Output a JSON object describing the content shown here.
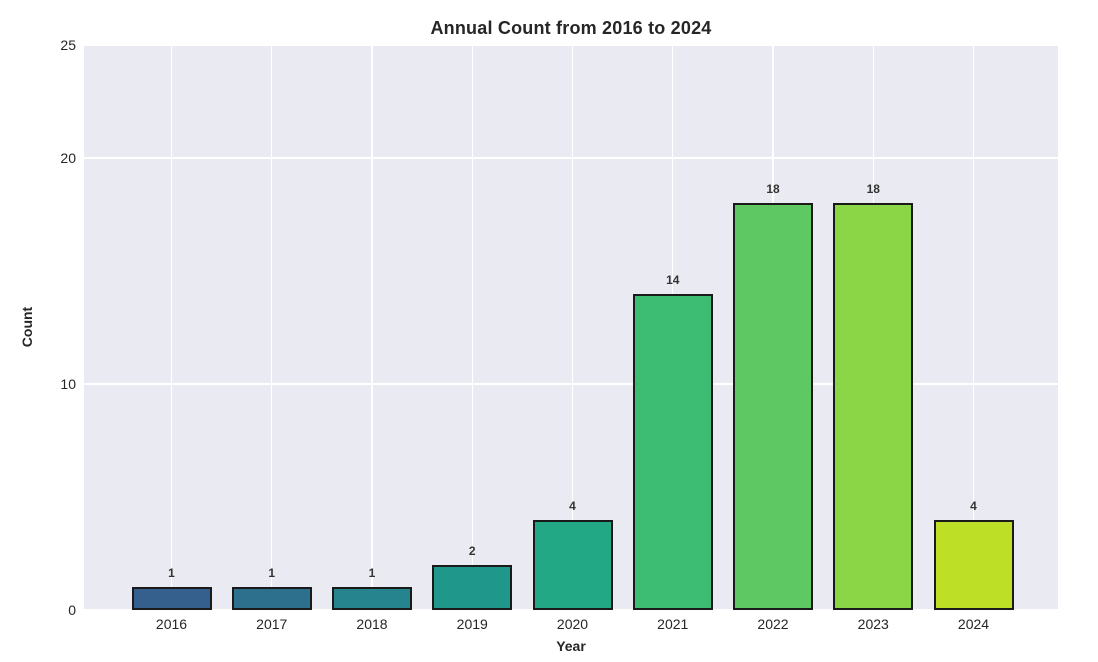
{
  "title": "Annual Count from 2016 to 2024",
  "colors": {
    "plot_background": "#eaeaf2",
    "grid_color": "#ffffff",
    "bar_edge_color": "#1a1a1a",
    "text_color": "#262626",
    "figure_background": "#ffffff"
  },
  "chart_data": {
    "type": "bar",
    "title": "Annual Count from 2016 to 2024",
    "xlabel": "Year",
    "ylabel": "Count",
    "categories": [
      "2016",
      "2017",
      "2018",
      "2019",
      "2020",
      "2021",
      "2022",
      "2023",
      "2024"
    ],
    "values": [
      1,
      1,
      1,
      2,
      4,
      14,
      18,
      18,
      4
    ],
    "value_labels": [
      "1",
      "1",
      "1",
      "2",
      "4",
      "14",
      "18",
      "18",
      "4"
    ],
    "bar_colors": [
      "#355f8d",
      "#2d708e",
      "#25848e",
      "#1f988b",
      "#22a884",
      "#3dbc74",
      "#5ec962",
      "#8bd646",
      "#bddf26"
    ],
    "ylim": [
      0,
      25
    ],
    "yticks": [
      0,
      10,
      20,
      25
    ],
    "ytick_labels": [
      "0",
      "10",
      "20",
      "25"
    ],
    "grid": true,
    "legend": null
  }
}
